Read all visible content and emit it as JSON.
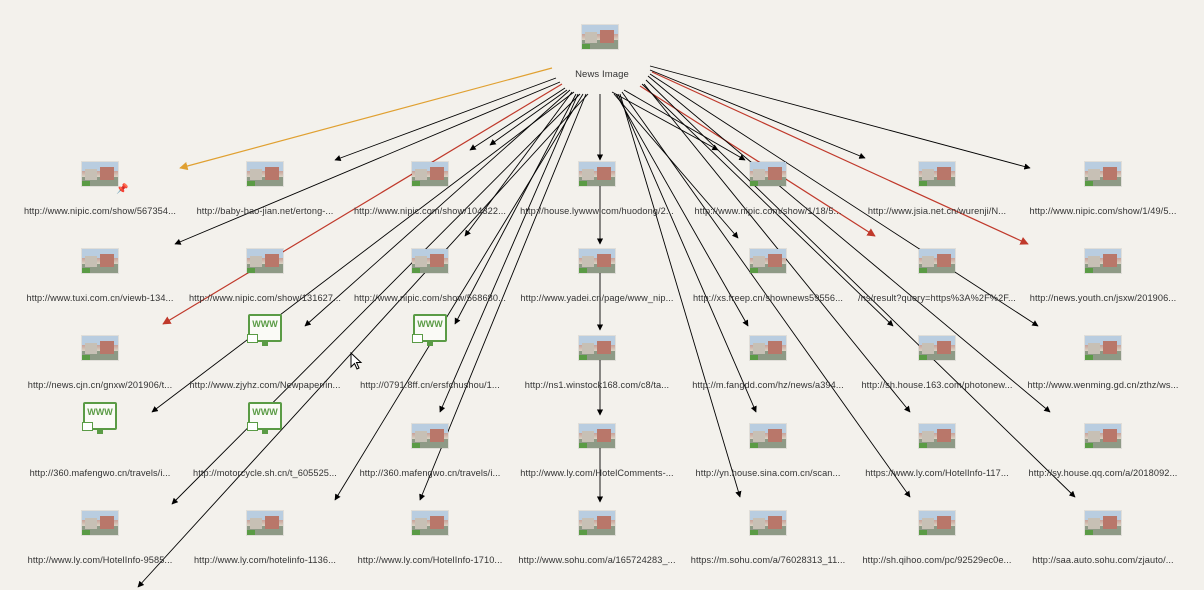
{
  "root": {
    "label": "News Image"
  },
  "nodes": [
    {
      "label": "http://www.nipic.com/show/567354..."
    },
    {
      "label": "http://baby-bao-jian.net/ertong-..."
    },
    {
      "label": "http://www.nipic.com/show/104322..."
    },
    {
      "label": "http://house.lywww.com/huodong/2..."
    },
    {
      "label": "http://www.nipic.com/show/1/18/5..."
    },
    {
      "label": "http://www.jsia.net.cn/wurenji/N..."
    },
    {
      "label": "http://www.nipic.com/show/1/49/5..."
    },
    {
      "label": "http://www.tuxi.com.cn/viewb-134..."
    },
    {
      "label": "http://www.nipic.com/show/131627..."
    },
    {
      "label": "http://www.nipic.com/show/568680..."
    },
    {
      "label": "http://www.yadei.cn/page/www_nip..."
    },
    {
      "label": "http://xs.freep.cn/shownews59556..."
    },
    {
      "label": "/ns/result?query=https%3A%2F%2F..."
    },
    {
      "label": "http://news.youth.cn/jsxw/201906..."
    },
    {
      "label": "http://news.cjn.cn/gnxw/201906/t..."
    },
    {
      "label": "http://www.zjyhz.com/Newpaper/in..."
    },
    {
      "label": "http://0791.8ff.cn/ersfchushou/1..."
    },
    {
      "label": "http://ns1.winstock168.com/c8/ta..."
    },
    {
      "label": "http://m.fangdd.com/hz/news/a394..."
    },
    {
      "label": "http://sh.house.163.com/photonew..."
    },
    {
      "label": "http://www.wenming.gd.cn/zthz/ws..."
    },
    {
      "label": "http://360.mafengwo.cn/travels/i..."
    },
    {
      "label": "http://motorcycle.sh.cn/t_605525..."
    },
    {
      "label": "http://360.mafengwo.cn/travels/i..."
    },
    {
      "label": "http://www.ly.com/HotelComments-..."
    },
    {
      "label": "http://yn.house.sina.com.cn/scan..."
    },
    {
      "label": "https://www.ly.com/HotelInfo-117..."
    },
    {
      "label": "http://sy.house.qq.com/a/2018092..."
    },
    {
      "label": "http://www.ly.com/HotelInfo-9585..."
    },
    {
      "label": "http://www.ly.com/hotelinfo-1136..."
    },
    {
      "label": "http://www.ly.com/HotelInfo-1710..."
    },
    {
      "label": "http://www.sohu.com/a/165724283_..."
    },
    {
      "label": "https://m.sohu.com/a/76028313_11..."
    },
    {
      "label": "http://sh.qihoo.com/pc/92529ec0e..."
    },
    {
      "label": "http://saa.auto.sohu.com/zjauto/..."
    }
  ],
  "icons": [
    "image-thumbnail-icon",
    "www-icon",
    "pin-icon",
    "cursor-icon"
  ],
  "colors": {
    "edge_default": "#000000",
    "edge_highlight_orange": "#e0a030",
    "edge_highlight_red": "#c0392b",
    "icon_green": "#5a9b45",
    "background": "#f3f1ec"
  }
}
